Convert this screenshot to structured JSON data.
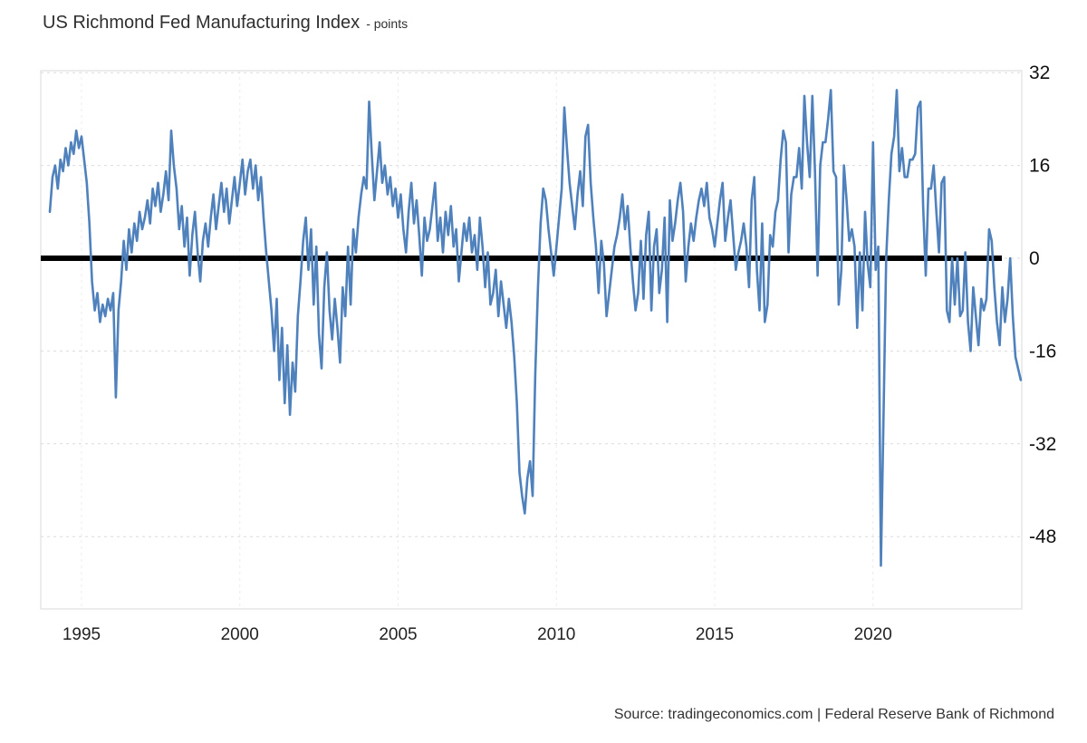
{
  "header": {
    "title": "US Richmond Fed Manufacturing Index",
    "subtitle": "- points"
  },
  "footer": {
    "source": "Source: tradingeconomics.com | Federal Reserve Bank of Richmond"
  },
  "colors": {
    "line": "#4f81bc",
    "zero_line": "#000000",
    "grid": "#dcdcdc",
    "grid_vertical": "#ececec",
    "plot_border": "#d9d9d9",
    "axis_text": "#222222"
  },
  "chart_data": {
    "type": "line",
    "title": "US Richmond Fed Manufacturing Index",
    "unit": "points",
    "source": "tradingeconomics.com | Federal Reserve Bank of Richmond",
    "frequency": "monthly",
    "start": "1994-01",
    "end": "2024-09",
    "x_ticks": [
      1995,
      2000,
      2005,
      2010,
      2015,
      2020
    ],
    "y_ticks": [
      32,
      16,
      0,
      -16,
      -32,
      -48
    ],
    "ylim": [
      -62,
      32
    ],
    "grid": true,
    "legend": "none",
    "values": [
      8,
      14,
      16,
      12,
      17,
      15,
      19,
      16,
      20,
      18,
      22,
      19,
      21,
      17,
      13,
      6,
      -4,
      -9,
      -6,
      -11,
      -8,
      -10,
      -7,
      -9,
      -6,
      -24,
      -9,
      -4,
      3,
      -2,
      5,
      1,
      6,
      3,
      8,
      5,
      7,
      10,
      6,
      12,
      9,
      13,
      8,
      11,
      15,
      10,
      22,
      16,
      12,
      5,
      9,
      2,
      7,
      -3,
      4,
      8,
      1,
      -4,
      3,
      6,
      2,
      7,
      11,
      5,
      9,
      13,
      8,
      12,
      6,
      10,
      14,
      9,
      13,
      17,
      11,
      15,
      17,
      12,
      16,
      10,
      14,
      7,
      1,
      -4,
      -9,
      -16,
      -7,
      -21,
      -12,
      -25,
      -15,
      -27,
      -18,
      -23,
      -10,
      -4,
      3,
      7,
      -2,
      5,
      -8,
      2,
      -13,
      -19,
      -5,
      1,
      -9,
      -14,
      -7,
      -12,
      -18,
      -5,
      -10,
      2,
      -8,
      5,
      1,
      7,
      11,
      14,
      12,
      27,
      18,
      10,
      15,
      20,
      13,
      16,
      11,
      14,
      9,
      12,
      7,
      11,
      5,
      1,
      8,
      13,
      6,
      10,
      4,
      -3,
      7,
      3,
      5,
      9,
      13,
      3,
      7,
      1,
      8,
      4,
      9,
      2,
      5,
      -4,
      1,
      6,
      3,
      7,
      1,
      4,
      -2,
      7,
      2,
      -5,
      1,
      -8,
      -6,
      -2,
      -10,
      -4,
      -8,
      -12,
      -7,
      -11,
      -17,
      -25,
      -37,
      -41,
      -44,
      -38,
      -35,
      -41,
      -20,
      -5,
      6,
      12,
      10,
      5,
      1,
      -3,
      2,
      7,
      12,
      26,
      19,
      13,
      9,
      5,
      11,
      15,
      9,
      21,
      23,
      13,
      7,
      2,
      -6,
      3,
      -1,
      -10,
      -6,
      -2,
      2,
      4,
      7,
      11,
      5,
      9,
      2,
      -4,
      -9,
      -6,
      3,
      -7,
      4,
      8,
      -9,
      2,
      5,
      -6,
      -2,
      7,
      -11,
      10,
      3,
      6,
      10,
      13,
      8,
      -4,
      2,
      6,
      3,
      7,
      10,
      12,
      9,
      13,
      7,
      5,
      2,
      6,
      10,
      13,
      3,
      7,
      10,
      4,
      -2,
      1,
      3,
      6,
      2,
      -5,
      10,
      14,
      -2,
      -9,
      6,
      -11,
      -8,
      4,
      2,
      8,
      10,
      17,
      22,
      20,
      1,
      11,
      14,
      14,
      19,
      12,
      28,
      20,
      14,
      28,
      15,
      -3,
      16,
      20,
      20,
      24,
      29,
      15,
      14,
      -8,
      -2,
      16,
      10,
      3,
      5,
      2,
      -12,
      1,
      -9,
      8,
      -1,
      -5,
      20,
      -2,
      2,
      -53,
      -27,
      0,
      10,
      18,
      21,
      29,
      15,
      19,
      14,
      14,
      17,
      17,
      18,
      26,
      27,
      9,
      -3,
      12,
      12,
      16,
      8,
      1,
      13,
      14,
      -9,
      -11,
      0,
      -8,
      0,
      -10,
      -9,
      1,
      -11,
      -16,
      -5,
      -10,
      -15,
      -7,
      -9,
      -7,
      5,
      3,
      -5,
      -11,
      -15,
      -5,
      -11,
      -7,
      0,
      -10,
      -17,
      -19,
      -21
    ]
  }
}
